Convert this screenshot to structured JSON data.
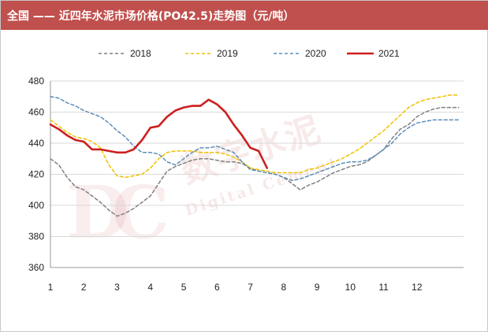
{
  "title": "全国 —— 近四年水泥市场价格(PO42.5)走势图（元/吨）",
  "watermark": {
    "logo": "DC",
    "cn": "数字水泥",
    "en": "Digital Cement"
  },
  "colors": {
    "title_bg": "#c0504d",
    "s2018": "#7f7f7f",
    "s2019": "#f0c000",
    "s2020": "#5b8db8",
    "s2021": "#cc1f1f"
  },
  "chart_data": {
    "type": "line",
    "title": "全国 —— 近四年水泥市场价格(PO42.5)走势图（元/吨）",
    "ylim": [
      360,
      480
    ],
    "yticks": [
      "360",
      "380",
      "400",
      "420",
      "440",
      "460",
      "480"
    ],
    "xlim": [
      1,
      13.4
    ],
    "xticks": [
      "1",
      "2",
      "3",
      "4",
      "5",
      "6",
      "7",
      "8",
      "9",
      "10",
      "11",
      "12"
    ],
    "grid": "horizontal",
    "legend_position": "top",
    "series": [
      {
        "name": "2018",
        "style": "dashed",
        "color": "#7f7f7f",
        "x": [
          1,
          1.25,
          1.5,
          1.75,
          2,
          2.25,
          2.5,
          2.75,
          3,
          3.25,
          3.5,
          3.75,
          4,
          4.25,
          4.5,
          4.75,
          5,
          5.25,
          5.5,
          5.75,
          6,
          6.25,
          6.5,
          6.75,
          7,
          7.25,
          7.5,
          7.75,
          8,
          8.25,
          8.5,
          8.75,
          9,
          9.25,
          9.5,
          9.75,
          10,
          10.25,
          10.5,
          10.75,
          11,
          11.25,
          11.5,
          11.75,
          12,
          12.25,
          12.5,
          12.75,
          13,
          13.25
        ],
        "values": [
          430,
          426,
          418,
          412,
          410,
          406,
          402,
          397,
          393,
          395,
          398,
          402,
          406,
          414,
          422,
          425,
          427,
          429,
          430,
          430,
          429,
          428,
          428,
          427,
          424,
          422,
          421,
          420,
          418,
          414,
          410,
          413,
          415,
          418,
          421,
          423,
          425,
          426,
          428,
          432,
          436,
          443,
          449,
          452,
          457,
          460,
          462,
          463,
          463,
          463
        ]
      },
      {
        "name": "2019",
        "style": "dashed",
        "color": "#f0c000",
        "x": [
          1,
          1.25,
          1.5,
          1.75,
          2,
          2.25,
          2.5,
          2.75,
          3,
          3.25,
          3.5,
          3.75,
          4,
          4.25,
          4.5,
          4.75,
          5,
          5.25,
          5.5,
          5.75,
          6,
          6.25,
          6.5,
          6.75,
          7,
          7.25,
          7.5,
          7.75,
          8,
          8.25,
          8.5,
          8.75,
          9,
          9.25,
          9.5,
          9.75,
          10,
          10.25,
          10.5,
          10.75,
          11,
          11.25,
          11.5,
          11.75,
          12,
          12.25,
          12.5,
          12.75,
          13,
          13.25
        ],
        "values": [
          455,
          451,
          447,
          444,
          443,
          441,
          437,
          426,
          419,
          418,
          419,
          420,
          424,
          430,
          434,
          435,
          435,
          435,
          434,
          434,
          434,
          433,
          431,
          428,
          424,
          423,
          422,
          421,
          421,
          421,
          421,
          423,
          424,
          426,
          428,
          430,
          433,
          436,
          440,
          444,
          448,
          453,
          458,
          463,
          466,
          468,
          469,
          470,
          471,
          471
        ]
      },
      {
        "name": "2020",
        "style": "dashed",
        "color": "#5b8db8",
        "x": [
          1,
          1.25,
          1.5,
          1.75,
          2,
          2.25,
          2.5,
          2.75,
          3,
          3.25,
          3.5,
          3.75,
          4,
          4.25,
          4.5,
          4.75,
          5,
          5.25,
          5.5,
          5.75,
          6,
          6.25,
          6.5,
          6.75,
          7,
          7.25,
          7.5,
          7.75,
          8,
          8.25,
          8.5,
          8.75,
          9,
          9.25,
          9.5,
          9.75,
          10,
          10.25,
          10.5,
          10.75,
          11,
          11.25,
          11.5,
          11.75,
          12,
          12.25,
          12.5,
          12.75,
          13,
          13.25
        ],
        "values": [
          470,
          469,
          466,
          464,
          461,
          459,
          457,
          453,
          448,
          444,
          438,
          434,
          434,
          433,
          428,
          426,
          430,
          434,
          437,
          437,
          438,
          436,
          434,
          428,
          423,
          422,
          421,
          420,
          418,
          416,
          417,
          419,
          421,
          423,
          425,
          427,
          428,
          428,
          429,
          432,
          436,
          440,
          446,
          450,
          453,
          454,
          455,
          455,
          455,
          455
        ]
      },
      {
        "name": "2021",
        "style": "solid",
        "color": "#cc1f1f",
        "x": [
          1,
          1.25,
          1.5,
          1.75,
          2,
          2.25,
          2.5,
          2.75,
          3,
          3.25,
          3.5,
          3.75,
          4,
          4.25,
          4.5,
          4.75,
          5,
          5.25,
          5.5,
          5.75,
          6,
          6.25,
          6.5,
          6.75,
          7,
          7.25,
          7.5
        ],
        "values": [
          452,
          449,
          445,
          442,
          441,
          436,
          436,
          435,
          434,
          434,
          436,
          442,
          450,
          451,
          457,
          461,
          463,
          464,
          464,
          468,
          465,
          460,
          452,
          445,
          437,
          435,
          424
        ]
      }
    ]
  }
}
